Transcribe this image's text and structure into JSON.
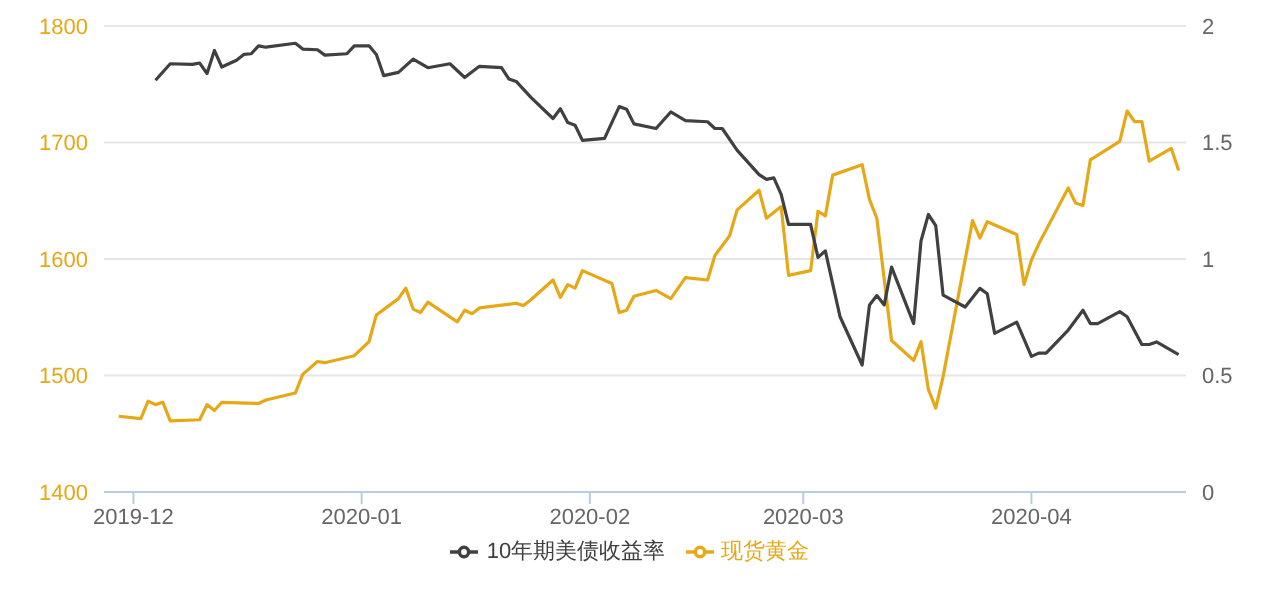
{
  "chart_data": {
    "type": "line",
    "xlim": [
      "2019-11-27",
      "2020-04-22"
    ],
    "xticks": [
      "2019-12",
      "2020-01",
      "2020-02",
      "2020-03",
      "2020-04"
    ],
    "ylim": [
      1400,
      1800
    ],
    "yticks": [
      1400,
      1500,
      1600,
      1700,
      1800
    ],
    "y2lim": [
      0,
      2
    ],
    "y2ticks": [
      0,
      0.5,
      1,
      1.5,
      2
    ],
    "grid": "y",
    "legend": "bottom",
    "marker": "none",
    "line_style": "solid",
    "series": [
      {
        "name": "现货黄金",
        "color": "#e6a817",
        "x": [
          "2019-11-29",
          "2019-12-02",
          "2019-12-03",
          "2019-12-04",
          "2019-12-05",
          "2019-12-06",
          "2019-12-10",
          "2019-12-11",
          "2019-12-12",
          "2019-12-13",
          "2019-12-18",
          "2019-12-19",
          "2019-12-23",
          "2019-12-24",
          "2019-12-26",
          "2019-12-27",
          "2019-12-31",
          "2020-01-02",
          "2020-01-03",
          "2020-01-06",
          "2020-01-07",
          "2020-01-08",
          "2020-01-09",
          "2020-01-10",
          "2020-01-14",
          "2020-01-15",
          "2020-01-16",
          "2020-01-17",
          "2020-01-22",
          "2020-01-23",
          "2020-01-24",
          "2020-01-27",
          "2020-01-28",
          "2020-01-29",
          "2020-01-30",
          "2020-01-31",
          "2020-02-04",
          "2020-02-05",
          "2020-02-06",
          "2020-02-07",
          "2020-02-10",
          "2020-02-12",
          "2020-02-14",
          "2020-02-17",
          "2020-02-18",
          "2020-02-20",
          "2020-02-21",
          "2020-02-24",
          "2020-02-25",
          "2020-02-27",
          "2020-02-28",
          "2020-03-02",
          "2020-03-03",
          "2020-03-04",
          "2020-03-05",
          "2020-03-09",
          "2020-03-10",
          "2020-03-11",
          "2020-03-13",
          "2020-03-16",
          "2020-03-17",
          "2020-03-18",
          "2020-03-19",
          "2020-03-20",
          "2020-03-24",
          "2020-03-25",
          "2020-03-26",
          "2020-03-30",
          "2020-03-31",
          "2020-04-01",
          "2020-04-02",
          "2020-04-03",
          "2020-04-06",
          "2020-04-07",
          "2020-04-08",
          "2020-04-09",
          "2020-04-13",
          "2020-04-14",
          "2020-04-15",
          "2020-04-16",
          "2020-04-17",
          "2020-04-20",
          "2020-04-21"
        ],
        "values": [
          1465,
          1463,
          1478,
          1475,
          1477,
          1461,
          1462,
          1475,
          1470,
          1477,
          1476,
          1479,
          1485,
          1501,
          1512,
          1511,
          1517,
          1529,
          1552,
          1566,
          1575,
          1557,
          1554,
          1563,
          1546,
          1556,
          1553,
          1558,
          1562,
          1560,
          1565,
          1582,
          1567,
          1578,
          1575,
          1590,
          1579,
          1554,
          1556,
          1568,
          1573,
          1566,
          1584,
          1582,
          1603,
          1620,
          1642,
          1659,
          1635,
          1645,
          1586,
          1590,
          1641,
          1637,
          1672,
          1681,
          1651,
          1635,
          1530,
          1513,
          1529,
          1488,
          1472,
          1499,
          1633,
          1618,
          1632,
          1621,
          1578,
          1599,
          1613,
          1625,
          1661,
          1648,
          1646,
          1685,
          1701,
          1727,
          1718,
          1718,
          1684,
          1695,
          1676
        ]
      },
      {
        "name": "10年期美债收益率",
        "color": "#404040",
        "axis": "y2",
        "x": [
          "2019-12-04",
          "2019-12-06",
          "2019-12-09",
          "2019-12-10",
          "2019-12-11",
          "2019-12-12",
          "2019-12-13",
          "2019-12-15",
          "2019-12-16",
          "2019-12-17",
          "2019-12-18",
          "2019-12-19",
          "2019-12-23",
          "2019-12-24",
          "2019-12-26",
          "2019-12-27",
          "2019-12-30",
          "2019-12-31",
          "2020-01-02",
          "2020-01-03",
          "2020-01-04",
          "2020-01-06",
          "2020-01-08",
          "2020-01-10",
          "2020-01-13",
          "2020-01-15",
          "2020-01-17",
          "2020-01-20",
          "2020-01-21",
          "2020-01-22",
          "2020-01-24",
          "2020-01-27",
          "2020-01-28",
          "2020-01-29",
          "2020-01-30",
          "2020-01-31",
          "2020-02-03",
          "2020-02-05",
          "2020-02-06",
          "2020-02-07",
          "2020-02-10",
          "2020-02-12",
          "2020-02-14",
          "2020-02-17",
          "2020-02-18",
          "2020-02-19",
          "2020-02-21",
          "2020-02-24",
          "2020-02-25",
          "2020-02-26",
          "2020-02-27",
          "2020-02-28",
          "2020-03-02",
          "2020-03-03",
          "2020-03-04",
          "2020-03-06",
          "2020-03-09",
          "2020-03-10",
          "2020-03-11",
          "2020-03-12",
          "2020-03-13",
          "2020-03-16",
          "2020-03-17",
          "2020-03-18",
          "2020-03-19",
          "2020-03-20",
          "2020-03-23",
          "2020-03-25",
          "2020-03-26",
          "2020-03-27",
          "2020-03-30",
          "2020-04-01",
          "2020-04-02",
          "2020-04-03",
          "2020-04-06",
          "2020-04-08",
          "2020-04-09",
          "2020-04-10",
          "2020-04-13",
          "2020-04-14",
          "2020-04-16",
          "2020-04-17",
          "2020-04-18",
          "2020-04-21"
        ],
        "values": [
          1.767,
          1.838,
          1.835,
          1.841,
          1.796,
          1.895,
          1.824,
          1.853,
          1.878,
          1.881,
          1.915,
          1.909,
          1.926,
          1.901,
          1.898,
          1.875,
          1.881,
          1.915,
          1.915,
          1.878,
          1.787,
          1.801,
          1.858,
          1.821,
          1.838,
          1.779,
          1.827,
          1.821,
          1.773,
          1.762,
          1.694,
          1.603,
          1.645,
          1.586,
          1.574,
          1.509,
          1.518,
          1.654,
          1.643,
          1.58,
          1.56,
          1.631,
          1.594,
          1.589,
          1.56,
          1.56,
          1.467,
          1.362,
          1.342,
          1.348,
          1.277,
          1.149,
          1.149,
          1.007,
          1.035,
          0.752,
          0.545,
          0.803,
          0.843,
          0.803,
          0.965,
          0.723,
          1.078,
          1.191,
          1.143,
          0.845,
          0.794,
          0.874,
          0.851,
          0.681,
          0.729,
          0.582,
          0.596,
          0.596,
          0.695,
          0.78,
          0.723,
          0.723,
          0.774,
          0.752,
          0.633,
          0.633,
          0.644,
          0.59
        ]
      }
    ]
  }
}
